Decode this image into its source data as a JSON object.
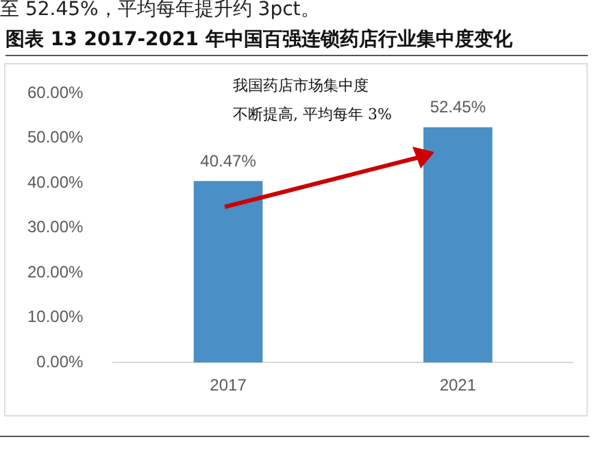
{
  "chart_data": {
    "type": "bar",
    "title": "图表 13 2017-2021 年中国百强连锁药店行业集中度变化",
    "annotations": [
      "至 52.45%，平均每年提升约 3pct。",
      "我国药店市场集中度",
      "不断提高, 平均每年 3%"
    ],
    "categories": [
      "2017",
      "2021"
    ],
    "values": [
      40.47,
      52.45
    ],
    "color": "#4a8fc6",
    "value_labels": [
      "40.47%",
      "52.45%"
    ],
    "ylim": [
      0,
      60
    ],
    "yticks": [
      {
        "value": 0,
        "label": "0.00%"
      },
      {
        "value": 10,
        "label": "10.00%"
      },
      {
        "value": 20,
        "label": "20.00%"
      },
      {
        "value": 30,
        "label": "30.00%"
      },
      {
        "value": 40,
        "label": "40.00%"
      },
      {
        "value": 50,
        "label": "50.00%"
      },
      {
        "value": 60,
        "label": "60.00%"
      }
    ],
    "grid": false,
    "legend": false
  }
}
